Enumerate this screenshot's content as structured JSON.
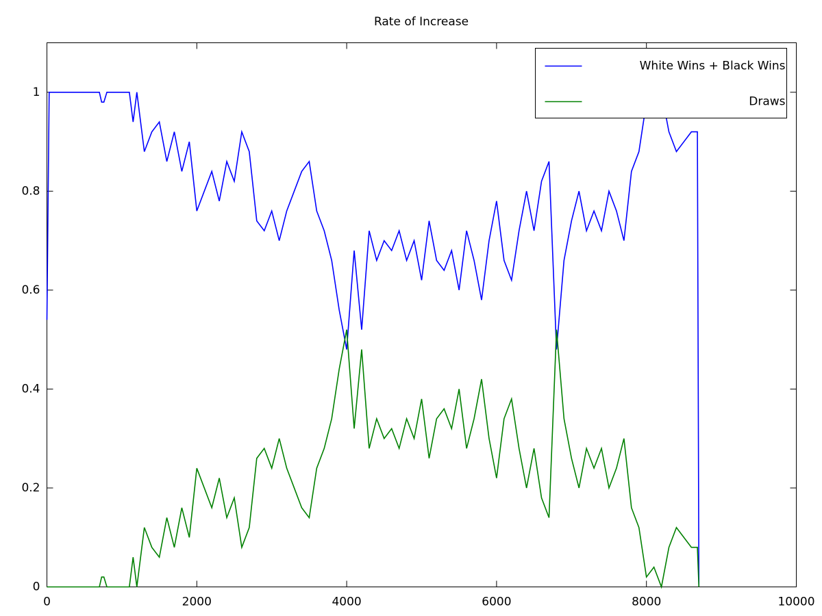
{
  "chart_data": {
    "type": "line",
    "title": "Rate of Increase",
    "x": [
      0,
      30,
      700,
      730,
      760,
      800,
      1100,
      1150,
      1200,
      1300,
      1400,
      1500,
      1600,
      1700,
      1800,
      1900,
      2000,
      2100,
      2200,
      2300,
      2400,
      2500,
      2600,
      2700,
      2800,
      2900,
      3000,
      3100,
      3200,
      3300,
      3400,
      3500,
      3600,
      3700,
      3800,
      3900,
      4000,
      4100,
      4200,
      4300,
      4400,
      4500,
      4600,
      4700,
      4800,
      4900,
      5000,
      5100,
      5200,
      5300,
      5400,
      5500,
      5600,
      5700,
      5800,
      5900,
      6000,
      6100,
      6200,
      6300,
      6400,
      6500,
      6600,
      6700,
      6800,
      6900,
      7000,
      7100,
      7200,
      7300,
      7400,
      7500,
      7600,
      7700,
      7800,
      7900,
      8000,
      8100,
      8200,
      8300,
      8400,
      8500,
      8600,
      8680,
      8700
    ],
    "series": [
      {
        "name": "White Wins + Black Wins",
        "color": "#0000ff",
        "values": [
          0.54,
          1.0,
          1.0,
          0.98,
          0.98,
          1.0,
          1.0,
          0.94,
          1.0,
          0.88,
          0.92,
          0.94,
          0.86,
          0.92,
          0.84,
          0.9,
          0.76,
          0.8,
          0.84,
          0.78,
          0.86,
          0.82,
          0.92,
          0.88,
          0.74,
          0.72,
          0.76,
          0.7,
          0.76,
          0.8,
          0.84,
          0.86,
          0.76,
          0.72,
          0.66,
          0.56,
          0.48,
          0.68,
          0.52,
          0.72,
          0.66,
          0.7,
          0.68,
          0.72,
          0.66,
          0.7,
          0.62,
          0.74,
          0.66,
          0.64,
          0.68,
          0.6,
          0.72,
          0.66,
          0.58,
          0.7,
          0.78,
          0.66,
          0.62,
          0.72,
          0.8,
          0.72,
          0.82,
          0.86,
          0.48,
          0.66,
          0.74,
          0.8,
          0.72,
          0.76,
          0.72,
          0.8,
          0.76,
          0.7,
          0.84,
          0.88,
          0.98,
          0.96,
          1.0,
          0.92,
          0.88,
          0.9,
          0.92,
          0.92,
          0
        ]
      },
      {
        "name": "Draws",
        "color": "#008000",
        "values": [
          0,
          0,
          0,
          0.02,
          0.02,
          0,
          0,
          0.06,
          0,
          0.12,
          0.08,
          0.06,
          0.14,
          0.08,
          0.16,
          0.1,
          0.24,
          0.2,
          0.16,
          0.22,
          0.14,
          0.18,
          0.08,
          0.12,
          0.26,
          0.28,
          0.24,
          0.3,
          0.24,
          0.2,
          0.16,
          0.14,
          0.24,
          0.28,
          0.34,
          0.44,
          0.52,
          0.32,
          0.48,
          0.28,
          0.34,
          0.3,
          0.32,
          0.28,
          0.34,
          0.3,
          0.38,
          0.26,
          0.34,
          0.36,
          0.32,
          0.4,
          0.28,
          0.34,
          0.42,
          0.3,
          0.22,
          0.34,
          0.38,
          0.28,
          0.2,
          0.28,
          0.18,
          0.14,
          0.52,
          0.34,
          0.26,
          0.2,
          0.28,
          0.24,
          0.28,
          0.2,
          0.24,
          0.3,
          0.16,
          0.12,
          0.02,
          0.04,
          0,
          0.08,
          0.12,
          0.1,
          0.08,
          0.08,
          0
        ]
      }
    ],
    "xlim": [
      0,
      10000
    ],
    "xticks": [
      0,
      2000,
      4000,
      6000,
      8000,
      10000
    ],
    "ylim": [
      0,
      1.1
    ],
    "yticks": [
      0,
      0.2,
      0.4,
      0.6,
      0.8,
      1
    ],
    "grid": false,
    "legend": "top-right"
  }
}
